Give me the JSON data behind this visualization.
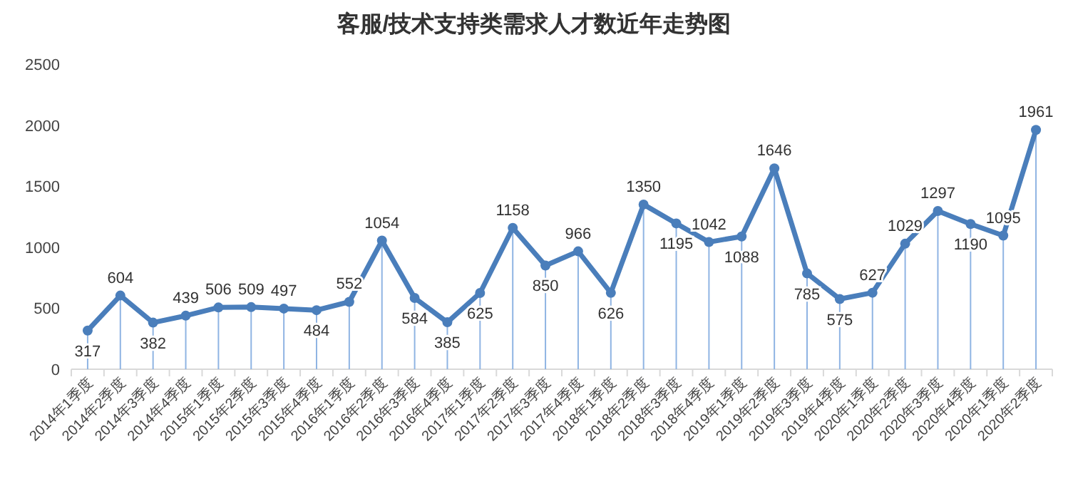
{
  "chart_data": {
    "type": "line",
    "title": "客服/技术支持类需求人才数近年走势图",
    "categories": [
      "2014年1季度",
      "2014年2季度",
      "2014年3季度",
      "2014年4季度",
      "2015年1季度",
      "2015年2季度",
      "2015年3季度",
      "2015年4季度",
      "2016年1季度",
      "2016年2季度",
      "2016年3季度",
      "2016年4季度",
      "2017年1季度",
      "2017年2季度",
      "2017年3季度",
      "2017年4季度",
      "2018年1季度",
      "2018年2季度",
      "2018年3季度",
      "2018年4季度",
      "2019年1季度",
      "2019年2季度",
      "2019年3季度",
      "2019年4季度",
      "2020年1季度",
      "2020年2季度",
      "2020年3季度",
      "2020年4季度",
      "2020年1季度",
      "2020年2季度"
    ],
    "series": [
      {
        "color": "#4a7ebb",
        "values": [
          317,
          604,
          382,
          439,
          506,
          509,
          497,
          484,
          552,
          1054,
          584,
          385,
          625,
          1158,
          850,
          966,
          626,
          1350,
          1195,
          1042,
          1088,
          1646,
          785,
          575,
          627,
          1029,
          1297,
          1190,
          1095,
          1961
        ]
      }
    ],
    "ylim": [
      0,
      2500
    ],
    "yticks": [
      0,
      500,
      1000,
      1500,
      2000,
      2500
    ],
    "data_labels": true,
    "marker": "circle",
    "line_style": "solid",
    "grid": false
  }
}
